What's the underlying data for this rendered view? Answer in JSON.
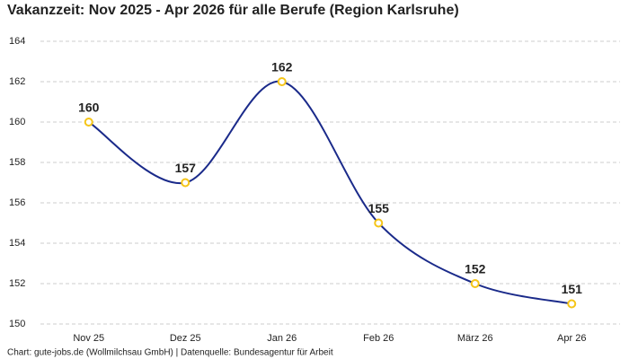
{
  "chart_data": {
    "type": "line",
    "title": "Vakanzzeit: Nov 2025 - Apr 2026 für alle Berufe (Region Karlsruhe)",
    "source": "Chart: gute-jobs.de (Wollmilchsau GmbH) | Datenquelle: Bundesagentur für Arbeit",
    "categories": [
      "Nov 25",
      "Dez 25",
      "Jan 26",
      "Feb 26",
      "März 26",
      "Apr 26"
    ],
    "values": [
      160,
      157,
      162,
      155,
      152,
      151
    ],
    "color": "#1a2a8a",
    "marker_color": "#f5c518",
    "ylim": [
      150,
      164
    ],
    "yticks": [
      150,
      152,
      154,
      156,
      158,
      160,
      162,
      164
    ],
    "grid": true
  }
}
